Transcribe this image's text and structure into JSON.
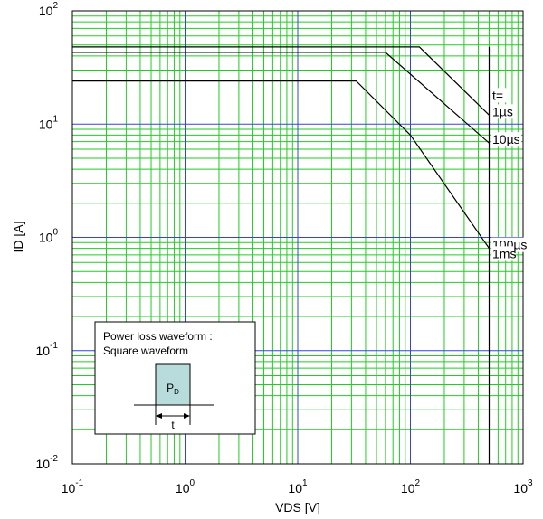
{
  "chart_data": {
    "type": "line",
    "title": "",
    "xlabel": "VDS [V]",
    "ylabel": "ID [A]",
    "x_scale": "log",
    "y_scale": "log",
    "xlim": [
      0.1,
      1000
    ],
    "ylim": [
      0.01,
      100
    ],
    "x_ticks": [
      {
        "value": 0.1,
        "base": "10",
        "exp": "-1"
      },
      {
        "value": 1,
        "base": "10",
        "exp": "0"
      },
      {
        "value": 10,
        "base": "10",
        "exp": "1"
      },
      {
        "value": 100,
        "base": "10",
        "exp": "2"
      },
      {
        "value": 1000,
        "base": "10",
        "exp": "3"
      }
    ],
    "y_ticks": [
      {
        "value": 0.01,
        "base": "10",
        "exp": "-2"
      },
      {
        "value": 0.1,
        "base": "10",
        "exp": "-1"
      },
      {
        "value": 1,
        "base": "10",
        "exp": "0"
      },
      {
        "value": 10,
        "base": "10",
        "exp": "1"
      },
      {
        "value": 100,
        "base": "10",
        "exp": "2"
      }
    ],
    "grid": true,
    "colors": {
      "major_grid": "#3344dd",
      "minor_grid": "#22cc22",
      "curve": "#000000",
      "pulse_fill": "#b8dcdc"
    },
    "series": [
      {
        "name": "1µs",
        "label_lines": [
          "t=",
          "1µs"
        ],
        "points": [
          [
            0.1,
            48
          ],
          [
            120,
            48
          ],
          [
            500,
            12
          ]
        ]
      },
      {
        "name": "10µs",
        "label_lines": [
          "10µs"
        ],
        "points": [
          [
            0.1,
            43
          ],
          [
            60,
            43
          ],
          [
            500,
            6.8
          ]
        ]
      },
      {
        "name": "100µs",
        "label_lines": [
          "100µs"
        ],
        "points": [
          [
            0.1,
            24
          ],
          [
            33,
            24
          ],
          [
            100,
            8
          ],
          [
            500,
            0.8
          ]
        ]
      },
      {
        "name": "1ms",
        "label_lines": [
          "1ms"
        ],
        "points": [
          [
            500,
            0.01
          ],
          [
            500,
            48
          ]
        ]
      }
    ],
    "inset": {
      "lines": [
        "Power loss waveform :",
        "Square waveform"
      ],
      "pulse_label": "P",
      "pulse_label_sub": "D",
      "width_label": "t"
    }
  }
}
